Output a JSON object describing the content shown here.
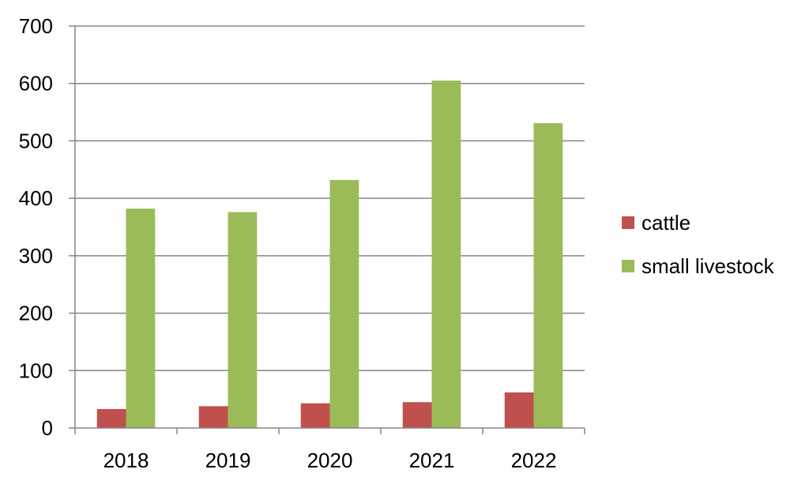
{
  "chart_data": {
    "type": "bar",
    "categories": [
      "2018",
      "2019",
      "2020",
      "2021",
      "2022"
    ],
    "series": [
      {
        "name": "cattle",
        "values": [
          33,
          38,
          43,
          45,
          62
        ],
        "color": "#c0504d"
      },
      {
        "name": "small livestock",
        "values": [
          382,
          376,
          432,
          605,
          531
        ],
        "color": "#9bbb59"
      }
    ],
    "y_ticks": [
      "0",
      "100",
      "200",
      "300",
      "400",
      "500",
      "600",
      "700"
    ],
    "ylim": [
      0,
      700
    ],
    "grid": true,
    "legend_position": "right",
    "title": "",
    "xlabel": "",
    "ylabel": ""
  }
}
